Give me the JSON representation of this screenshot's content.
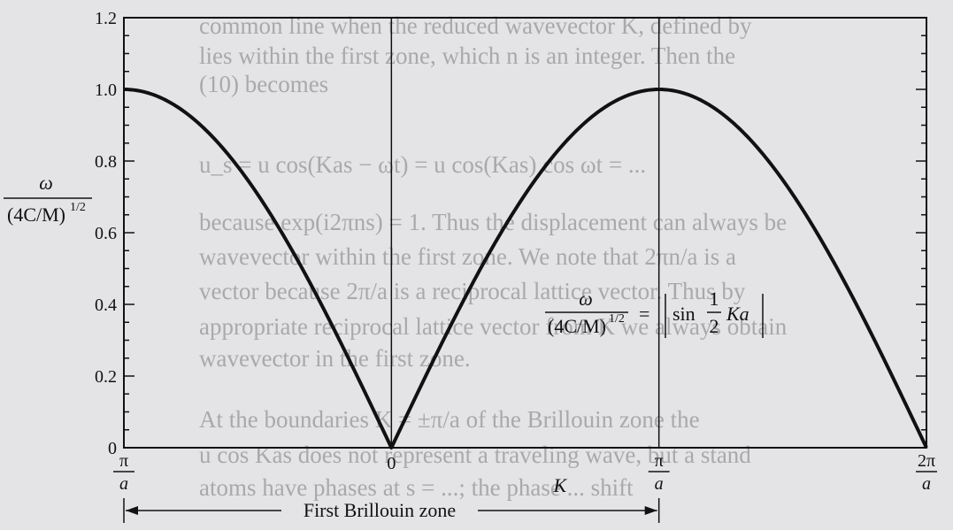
{
  "chart_data": {
    "type": "line",
    "title": "",
    "ylabel": {
      "numerator": "ω",
      "denominator": "(4C/M)",
      "denominator_exp": "1/2"
    },
    "xlabel": "K",
    "ylim": [
      0,
      1.2
    ],
    "xlim_in_pi_over_a": [
      -1,
      2
    ],
    "y_ticks": [
      "0",
      "0.2",
      "0.4",
      "0.6",
      "0.8",
      "1.0",
      "1.2"
    ],
    "y_tick_values": [
      0,
      0.2,
      0.4,
      0.6,
      0.8,
      1.0,
      1.2
    ],
    "x_ticks": [
      {
        "value": -1,
        "num": "π",
        "den": "a",
        "prefix": ""
      },
      {
        "value": 0,
        "num": "0",
        "den": "",
        "prefix": ""
      },
      {
        "value": 1,
        "num": "π",
        "den": "a",
        "prefix": ""
      },
      {
        "value": 2,
        "num": "2π",
        "den": "a",
        "prefix": ""
      }
    ],
    "series": [
      {
        "formula": "|sin(Ka/2)|",
        "x_in_pi_over_a": [
          -1,
          -0.75,
          -0.5,
          -0.25,
          0,
          0.25,
          0.5,
          0.75,
          1,
          1.25,
          1.5,
          1.75,
          2
        ],
        "values": [
          1.0,
          0.924,
          0.707,
          0.383,
          0.0,
          0.383,
          0.707,
          0.924,
          1.0,
          0.924,
          0.707,
          0.383,
          0.0
        ]
      }
    ],
    "annotation": {
      "lhs_num": "ω",
      "lhs_den": "(4C/M)",
      "lhs_exp": "1/2",
      "eq": "=",
      "sin": "sin",
      "frac_num": "1",
      "frac_den": "2",
      "tail": "Ka"
    },
    "zone_label": "First Brillouin zone",
    "grid": false
  },
  "background_text": [
    "common line when the reduced wavevector K, defined by",
    "lies within the first zone, which n is an integer. Then the",
    "(10) becomes",
    "u_s = u cos(Kas − ωt) = u cos(Kas) cos ωt = ...",
    "because exp(i2πns) = 1. Thus the displacement can always be",
    "wavevector within the first zone. We note that 2πn/a is a",
    "vector because 2π/a is a reciprocal lattice vector. Thus by",
    "appropriate reciprocal lattice vector from K we always obtain",
    "wavevector in the first zone.",
    "At the boundaries K = ±π/a of the Brillouin zone the",
    "u cos Kas does not represent a traveling wave, but a stand",
    "atoms have phases at s = ...; the phase ... shift"
  ]
}
